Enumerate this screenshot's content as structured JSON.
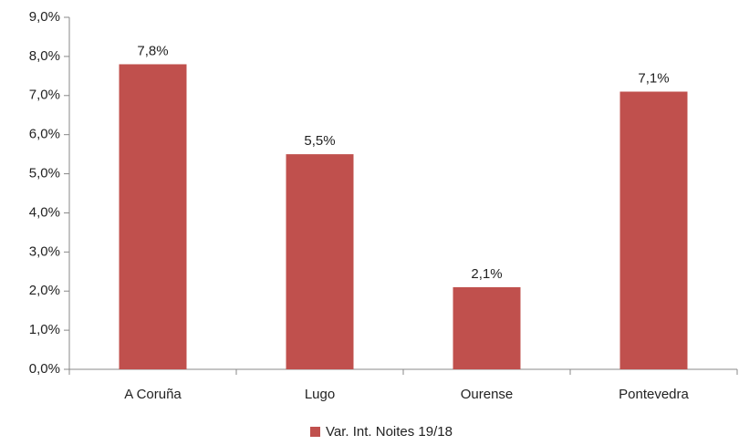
{
  "chart_data": {
    "type": "bar",
    "categories": [
      "A Coruña",
      "Lugo",
      "Ourense",
      "Pontevedra"
    ],
    "series": [
      {
        "name": "Var. Int. Noites 19/18",
        "color": "#c0504d",
        "values": [
          7.8,
          5.5,
          2.1,
          7.1
        ],
        "value_labels": [
          "7,8%",
          "5,5%",
          "2,1%",
          "7,1%"
        ]
      }
    ],
    "ylim": [
      0,
      9
    ],
    "yticks": [
      {
        "value": 0,
        "label": "0,0%"
      },
      {
        "value": 1,
        "label": "1,0%"
      },
      {
        "value": 2,
        "label": "2,0%"
      },
      {
        "value": 3,
        "label": "3,0%"
      },
      {
        "value": 4,
        "label": "4,0%"
      },
      {
        "value": 5,
        "label": "5,0%"
      },
      {
        "value": 6,
        "label": "6,0%"
      },
      {
        "value": 7,
        "label": "7,0%"
      },
      {
        "value": 8,
        "label": "8,0%"
      },
      {
        "value": 9,
        "label": "9,0%"
      }
    ],
    "grid": false,
    "legend": "bottom"
  }
}
